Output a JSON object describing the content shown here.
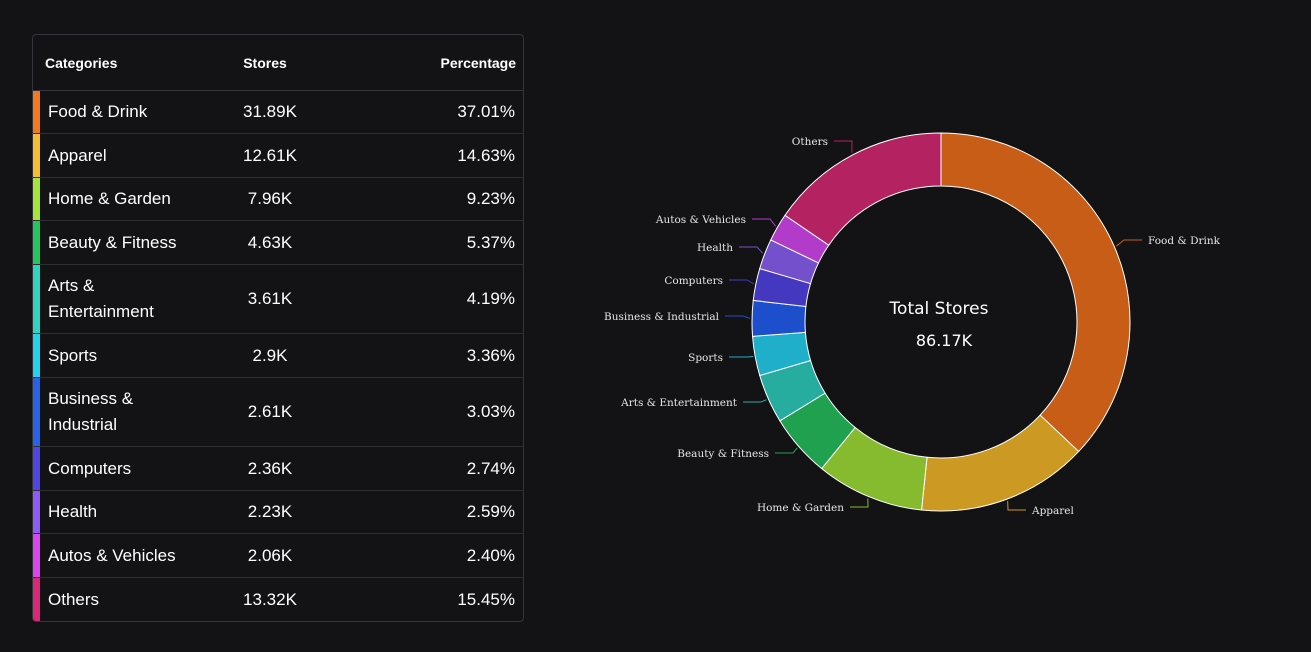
{
  "table": {
    "headers": {
      "category": "Categories",
      "stores": "Stores",
      "percentage": "Percentage"
    },
    "rows": [
      {
        "category": "Food & Drink",
        "stores": "31.89K",
        "percentage": "37.01%",
        "color": "#f47a1f"
      },
      {
        "category": "Apparel",
        "stores": "12.61K",
        "percentage": "14.63%",
        "color": "#f5bd2f"
      },
      {
        "category": "Home & Garden",
        "stores": "7.96K",
        "percentage": "9.23%",
        "color": "#a3e635"
      },
      {
        "category": "Beauty & Fitness",
        "stores": "4.63K",
        "percentage": "5.37%",
        "color": "#22c55e"
      },
      {
        "category": "Arts & Entertainment",
        "stores": "3.61K",
        "percentage": "4.19%",
        "color": "#2dd4bf"
      },
      {
        "category": "Sports",
        "stores": "2.9K",
        "percentage": "3.36%",
        "color": "#22d3ee"
      },
      {
        "category": "Business & Industrial",
        "stores": "2.61K",
        "percentage": "3.03%",
        "color": "#2563eb"
      },
      {
        "category": "Computers",
        "stores": "2.36K",
        "percentage": "2.74%",
        "color": "#4f46e5"
      },
      {
        "category": "Health",
        "stores": "2.23K",
        "percentage": "2.59%",
        "color": "#8b5cf6"
      },
      {
        "category": "Autos & Vehicles",
        "stores": "2.06K",
        "percentage": "2.40%",
        "color": "#d946ef"
      },
      {
        "category": "Others",
        "stores": "13.32K",
        "percentage": "15.45%",
        "color": "#db2777"
      }
    ]
  },
  "donut": {
    "center_title": "Total Stores",
    "center_value": "86.17K"
  },
  "chart_data": {
    "type": "pie",
    "variant": "donut",
    "title": "Total Stores",
    "total": "86.17K",
    "categories": [
      "Food & Drink",
      "Apparel",
      "Home & Garden",
      "Beauty & Fitness",
      "Arts & Entertainment",
      "Sports",
      "Business & Industrial",
      "Computers",
      "Health",
      "Autos & Vehicles",
      "Others"
    ],
    "values": [
      37.01,
      14.63,
      9.23,
      5.37,
      4.19,
      3.36,
      3.03,
      2.74,
      2.59,
      2.4,
      15.45
    ],
    "stores": [
      31.89,
      12.61,
      7.96,
      4.63,
      3.61,
      2.9,
      2.61,
      2.36,
      2.23,
      2.06,
      13.32
    ],
    "slice_colors": [
      "#c85d17",
      "#cc9a22",
      "#86bb2f",
      "#20a150",
      "#26ada0",
      "#1fafca",
      "#1d4fcc",
      "#4538c0",
      "#7450cc",
      "#b23cc9",
      "#b52262"
    ],
    "legend": "none"
  }
}
